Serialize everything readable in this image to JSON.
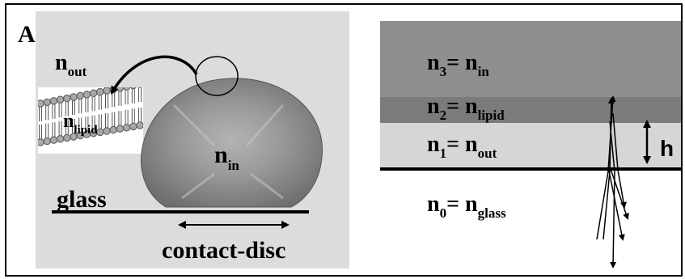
{
  "panel_a": {
    "label": "A",
    "n_out": {
      "base": "n",
      "sub": "out"
    },
    "n_lipid": {
      "base": "n",
      "sub": "lipid"
    },
    "n_in": {
      "base": "n",
      "sub": "in"
    },
    "glass": "glass",
    "contact_disc": "contact-disc"
  },
  "panel_b": {
    "n3": {
      "base": "n",
      "sub": "3",
      "eq": "= n",
      "eq_sub": "in"
    },
    "n2": {
      "base": "n",
      "sub": "2",
      "eq": "= n",
      "eq_sub": "lipid"
    },
    "n1": {
      "base": "n",
      "sub": "1",
      "eq": "= n",
      "eq_sub": "out"
    },
    "n0": {
      "base": "n",
      "sub": "0",
      "eq": "= n",
      "eq_sub": "glass"
    },
    "h": "h"
  },
  "colors": {
    "panel_a_bg": "#dcdcdc",
    "layer_n3": "#8e8e8e",
    "layer_n2": "#7b7b7b",
    "layer_n1": "#d6d6d6",
    "vesicle": "#8a8a8a",
    "lipid_head": "#a9a9a9"
  }
}
